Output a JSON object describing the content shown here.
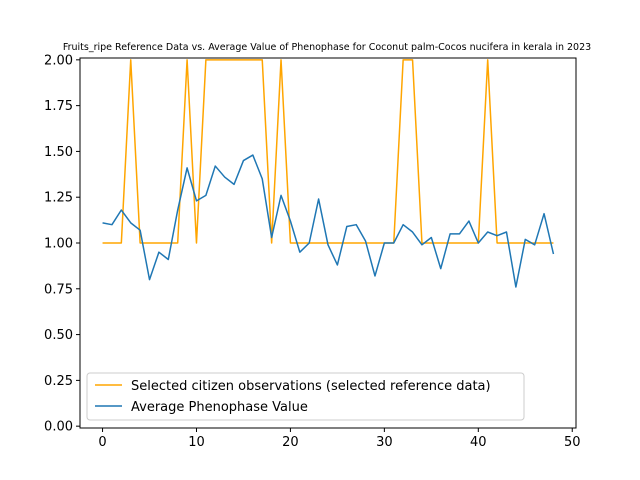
{
  "chart_data": {
    "type": "line",
    "title": "Fruits_ripe Reference Data vs. Average Value of Phenophase for Coconut palm-Cocos nucifera in kerala in 2023",
    "xlabel": "",
    "ylabel": "",
    "xlim": [
      -2.4,
      50.4
    ],
    "ylim": [
      -0.01,
      2.01
    ],
    "xticks": [
      0,
      10,
      20,
      30,
      40,
      50
    ],
    "yticks": [
      0.0,
      0.25,
      0.5,
      0.75,
      1.0,
      1.25,
      1.5,
      1.75,
      2.0
    ],
    "xtick_labels": [
      "0",
      "10",
      "20",
      "30",
      "40",
      "50"
    ],
    "ytick_labels": [
      "0.00",
      "0.25",
      "0.50",
      "0.75",
      "1.00",
      "1.25",
      "1.50",
      "1.75",
      "2.00"
    ],
    "grid": false,
    "legend_position": "lower-left",
    "x": [
      0,
      1,
      2,
      3,
      4,
      5,
      6,
      7,
      8,
      9,
      10,
      11,
      12,
      13,
      14,
      15,
      16,
      17,
      18,
      19,
      20,
      21,
      22,
      23,
      24,
      25,
      26,
      27,
      28,
      29,
      30,
      31,
      32,
      33,
      34,
      35,
      36,
      37,
      38,
      39,
      40,
      41,
      42,
      43,
      44,
      45,
      46,
      47,
      48
    ],
    "series": [
      {
        "name": "Selected citizen observations (selected reference data)",
        "color": "#ffa500",
        "values": [
          1,
          1,
          1,
          2,
          1,
          1,
          1,
          1,
          1,
          2,
          1,
          2,
          2,
          2,
          2,
          2,
          2,
          2,
          1,
          2,
          1,
          1,
          1,
          1,
          1,
          1,
          1,
          1,
          1,
          1,
          1,
          1,
          2,
          2,
          1,
          1,
          1,
          1,
          1,
          1,
          1,
          2,
          1,
          1,
          1,
          1,
          1,
          1,
          1
        ]
      },
      {
        "name": "Average Phenophase Value",
        "color": "#1f77b4",
        "values": [
          1.11,
          1.1,
          1.18,
          1.11,
          1.07,
          0.8,
          0.95,
          0.91,
          1.18,
          1.41,
          1.23,
          1.26,
          1.42,
          1.36,
          1.32,
          1.45,
          1.48,
          1.35,
          1.03,
          1.26,
          1.12,
          0.95,
          1.0,
          1.24,
          0.99,
          0.88,
          1.09,
          1.1,
          1.01,
          0.82,
          1.0,
          1.0,
          1.1,
          1.06,
          0.99,
          1.03,
          0.86,
          1.05,
          1.05,
          1.12,
          1.0,
          1.06,
          1.04,
          1.06,
          0.76,
          1.02,
          0.99,
          1.16,
          0.94
        ]
      }
    ]
  }
}
